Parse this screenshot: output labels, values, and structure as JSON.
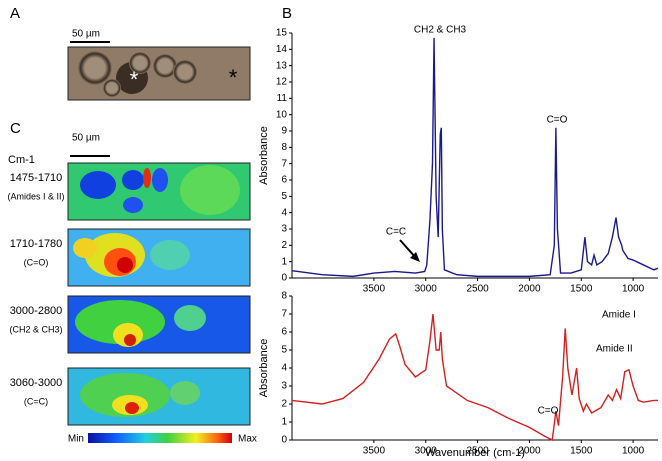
{
  "panel_labels": [
    "A",
    "B",
    "C"
  ],
  "micrograph": {
    "scale_bar": "50 µm",
    "markers": [
      "*",
      "*"
    ]
  },
  "maps": {
    "scale_bar": "50 µm",
    "unit": "Cm-1",
    "rows": [
      {
        "range": "1475-1710",
        "assignment": "(Amides I & II)"
      },
      {
        "range": "1710-1780",
        "assignment": "(C=O)"
      },
      {
        "range": "3000-2800",
        "assignment": "(CH2 & CH3)"
      },
      {
        "range": "3060-3000",
        "assignment": "(C=C)"
      }
    ],
    "colorbar": {
      "min": "Min",
      "max": "Max"
    }
  },
  "chart_data": [
    {
      "type": "line",
      "ylabel": "Absorbance",
      "color": "#1a1a8c",
      "xlim": [
        4290,
        760
      ],
      "xticks": [
        3500,
        3000,
        2500,
        2000,
        1500,
        1000
      ],
      "ylim": [
        0,
        15
      ],
      "yticks": [
        0,
        1,
        2,
        3,
        4,
        5,
        6,
        7,
        8,
        9,
        10,
        11,
        12,
        13,
        14,
        15
      ],
      "annotations": [
        "CH2 & CH3",
        "C=O",
        "C=C"
      ],
      "x": [
        4290,
        4000,
        3700,
        3500,
        3300,
        3100,
        3010,
        2990,
        2960,
        2935,
        2920,
        2900,
        2880,
        2860,
        2850,
        2840,
        2820,
        2700,
        2500,
        2000,
        1800,
        1760,
        1745,
        1730,
        1700,
        1600,
        1500,
        1465,
        1440,
        1400,
        1377,
        1350,
        1300,
        1240,
        1200,
        1165,
        1140,
        1110,
        1100,
        1050,
        1000,
        900,
        800,
        760
      ],
      "values": [
        0.45,
        0.2,
        0.1,
        0.3,
        0.4,
        0.3,
        0.4,
        0.8,
        3.5,
        7,
        14.7,
        5,
        2.5,
        8.8,
        9.2,
        3,
        0.5,
        0.2,
        0.1,
        0.1,
        0.2,
        2,
        9.2,
        3,
        0.3,
        0.3,
        0.5,
        2.5,
        1,
        0.8,
        1.4,
        0.8,
        1,
        1.5,
        2.5,
        3.7,
        2.5,
        2,
        1.7,
        1.2,
        1.1,
        0.8,
        0.5,
        0.6
      ]
    },
    {
      "type": "line",
      "ylabel": "Absorbance",
      "xlabel": "Wavenumber (cm-1)",
      "color": "#d42020",
      "xlim": [
        4290,
        760
      ],
      "xticks": [
        3500,
        3000,
        2500,
        2000,
        1500,
        1000
      ],
      "ylim": [
        0,
        8
      ],
      "yticks": [
        0,
        1,
        2,
        3,
        4,
        5,
        6,
        7,
        8
      ],
      "annotations": [
        "Amide I",
        "Amide II",
        "C=O"
      ],
      "x": [
        4290,
        4000,
        3800,
        3600,
        3450,
        3350,
        3290,
        3250,
        3200,
        3100,
        3000,
        2960,
        2930,
        2900,
        2870,
        2855,
        2840,
        2800,
        2600,
        2400,
        2200,
        2000,
        1850,
        1780,
        1745,
        1720,
        1680,
        1655,
        1630,
        1590,
        1545,
        1520,
        1480,
        1450,
        1400,
        1310,
        1240,
        1200,
        1160,
        1120,
        1080,
        1040,
        1000,
        950,
        900,
        800,
        760
      ],
      "values": [
        2.2,
        2.0,
        2.3,
        3.2,
        4.5,
        5.6,
        5.9,
        5.2,
        4.2,
        3.5,
        3.9,
        5.5,
        7.0,
        5.0,
        5.0,
        6.0,
        4.5,
        3.0,
        2.2,
        1.8,
        1.2,
        0.7,
        0.2,
        0,
        1.6,
        0.8,
        3.5,
        6.2,
        4.0,
        2.5,
        4.0,
        2.3,
        1.6,
        2.0,
        1.5,
        1.8,
        2.5,
        2.2,
        2.8,
        2.3,
        3.8,
        3.9,
        3.0,
        2.2,
        2.1,
        2.2,
        2.2
      ]
    }
  ]
}
